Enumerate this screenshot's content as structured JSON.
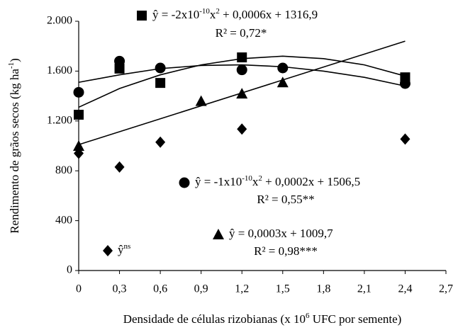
{
  "chart_data": {
    "type": "scatter",
    "xlabel": [
      "Densidade de células rizobianas (x 10",
      "6",
      "  UFC por semente)"
    ],
    "ylabel": [
      "Rendimento de grãos secos (kg ha",
      "-1",
      ")"
    ],
    "xlim": [
      0,
      2.7
    ],
    "xticks": [
      0,
      {
        "value": 0.3,
        "label": "0,3"
      },
      {
        "value": 0.6,
        "label": "0,6"
      },
      {
        "value": 0.9,
        "label": "0,9"
      },
      {
        "value": 1.2,
        "label": "1,2"
      },
      {
        "value": 1.5,
        "label": "1,5"
      },
      {
        "value": 1.8,
        "label": "1,8"
      },
      {
        "value": 2.1,
        "label": "2,1"
      },
      {
        "value": 2.4,
        "label": "2,4"
      },
      {
        "value": 2.7,
        "label": "2,7"
      }
    ],
    "ylim": [
      0,
      2000
    ],
    "yticks": [
      0,
      400,
      800,
      {
        "value": 1200,
        "label": "1.200"
      },
      {
        "value": 1600,
        "label": "1.600"
      },
      {
        "value": 2000,
        "label": "2.000"
      }
    ],
    "color": "#000000",
    "series": [
      {
        "marker": "square",
        "x": [
          0,
          0.3,
          0.6,
          1.2,
          2.4
        ],
        "values": [
          1250,
          1620,
          1505,
          1710,
          1550
        ]
      },
      {
        "marker": "circle",
        "x": [
          0,
          0.3,
          0.6,
          1.2,
          1.5,
          2.4
        ],
        "values": [
          1430,
          1680,
          1625,
          1610,
          1625,
          1500
        ]
      },
      {
        "marker": "triangle",
        "x": [
          0,
          0.9,
          1.2,
          1.5
        ],
        "values": [
          1000,
          1360,
          1420,
          1510
        ]
      },
      {
        "marker": "diamond",
        "x": [
          0,
          0.3,
          0.6,
          1.2,
          2.4
        ],
        "values": [
          940,
          830,
          1030,
          1135,
          1055
        ]
      }
    ],
    "fits": [
      {
        "x": [
          0,
          0.3,
          0.6,
          0.9,
          1.2,
          1.5,
          1.8,
          2.1,
          2.4
        ],
        "values": [
          1310,
          1460,
          1570,
          1650,
          1700,
          1720,
          1700,
          1650,
          1560
        ]
      },
      {
        "x": [
          0,
          0.3,
          0.6,
          0.9,
          1.2,
          1.5,
          1.8,
          2.1,
          2.4
        ],
        "values": [
          1510,
          1570,
          1620,
          1645,
          1650,
          1635,
          1600,
          1550,
          1480
        ]
      },
      {
        "x": [
          0,
          2.4
        ],
        "values": [
          1010,
          1840
        ]
      }
    ],
    "annotations": [
      {
        "marker": "square",
        "lines": [
          [
            "ŷ = -2x10",
            "-10",
            "x",
            "2",
            " + 0,0006x + 1316,9"
          ],
          [
            "R² = 0,72*"
          ]
        ]
      },
      {
        "marker": "circle",
        "lines": [
          [
            "ŷ =  -1x10",
            "-10",
            "x",
            "2",
            " + 0,0002x + 1506,5"
          ],
          [
            "R² = 0,55**"
          ]
        ]
      },
      {
        "marker": "triangle",
        "lines": [
          [
            "ŷ = 0,0003x + 1009,7"
          ],
          [
            "R² = 0,98***"
          ]
        ]
      },
      {
        "marker": "diamond",
        "lines": [
          [
            "ŷ",
            "ns"
          ]
        ]
      }
    ]
  }
}
